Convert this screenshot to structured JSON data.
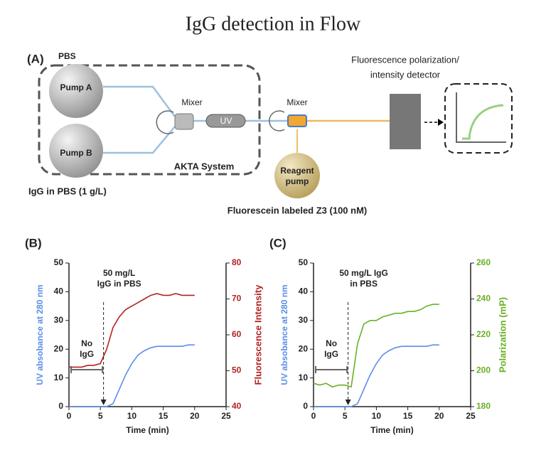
{
  "title": "IgG detection in Flow",
  "diagram": {
    "label": "(A)",
    "pbs": "PBS",
    "pump_a": "Pump A",
    "pump_b": "Pump B",
    "mixer_1": "Mixer",
    "uv": "UV",
    "system": "AKTA System",
    "sample": "IgG in PBS (1 g/L)",
    "mixer_2": "Mixer",
    "reagent_pump": [
      "Reagent",
      "pump"
    ],
    "reagent": "Fluorescein labeled Z3 (100 nM)",
    "detector": [
      "Fluorescence polarization/",
      "intensity detector"
    ]
  },
  "chart_data": [
    {
      "type": "line",
      "label": "(B)",
      "x_label": "Time (min)",
      "y_label": "UV absobance at 280 nm",
      "y2_label": "Fluorescence Intensity",
      "x": [
        0,
        1,
        2,
        3,
        4,
        5,
        6,
        7,
        8,
        9,
        10,
        11,
        12,
        13,
        14,
        15,
        16,
        17,
        18,
        19,
        20
      ],
      "xlim": [
        0,
        25
      ],
      "xticks": [
        0,
        5,
        10,
        15,
        20,
        25
      ],
      "ylim": [
        0,
        50
      ],
      "yticks": [
        0,
        10,
        20,
        30,
        40,
        50
      ],
      "y2lim": [
        40,
        80
      ],
      "y2ticks": [
        40,
        50,
        60,
        70,
        80
      ],
      "series": [
        {
          "name": "UV absobance at 280 nm",
          "color": "#5b8ee6",
          "values": [
            0,
            0,
            0,
            0,
            0,
            0,
            0,
            1,
            6,
            11,
            15,
            18,
            19.5,
            20.5,
            21,
            21,
            21,
            21,
            21,
            21.5,
            21.5
          ]
        },
        {
          "name": "Fluorescence Intensity",
          "color": "#b22222",
          "axis": "y2",
          "values": [
            51,
            51,
            51,
            51.5,
            51.5,
            52,
            56,
            62,
            65,
            67,
            68,
            69,
            70,
            71,
            71.5,
            71,
            71,
            71.5,
            71,
            71,
            71
          ]
        }
      ],
      "annotations": [
        {
          "text": [
            "50 mg/L",
            "IgG in PBS"
          ],
          "x": 5.5
        },
        {
          "text": [
            "No",
            "IgG"
          ],
          "span": [
            0,
            5
          ]
        }
      ]
    },
    {
      "type": "line",
      "label": "(C)",
      "x_label": "Time (min)",
      "y_label": "UV absobance at 280 nm",
      "y2_label": "Polarization (mP)",
      "x": [
        0,
        1,
        2,
        3,
        4,
        5,
        6,
        7,
        8,
        9,
        10,
        11,
        12,
        13,
        14,
        15,
        16,
        17,
        18,
        19,
        20
      ],
      "xlim": [
        0,
        25
      ],
      "xticks": [
        0,
        5,
        10,
        15,
        20,
        25
      ],
      "ylim": [
        0,
        50
      ],
      "yticks": [
        0,
        10,
        20,
        30,
        40,
        50
      ],
      "y2lim": [
        180,
        260
      ],
      "y2ticks": [
        180,
        200,
        220,
        240,
        260
      ],
      "series": [
        {
          "name": "UV absobance at 280 nm",
          "color": "#5b8ee6",
          "values": [
            0,
            0,
            0,
            0,
            0,
            0,
            0,
            1,
            6,
            11,
            15,
            18,
            19.5,
            20.5,
            21,
            21,
            21,
            21,
            21,
            21.5,
            21.5
          ]
        },
        {
          "name": "Polarization (mP)",
          "color": "#6ab023",
          "axis": "y2",
          "values": [
            193,
            192,
            193,
            191,
            192,
            192,
            191,
            215,
            226,
            228,
            228,
            230,
            231,
            232,
            232,
            233,
            233,
            234,
            236,
            237,
            237
          ]
        }
      ],
      "annotations": [
        {
          "text": [
            "50 mg/L IgG",
            "in PBS"
          ],
          "x": 5.5
        },
        {
          "text": [
            "No",
            "IgG"
          ],
          "span": [
            0,
            5
          ]
        }
      ]
    }
  ]
}
